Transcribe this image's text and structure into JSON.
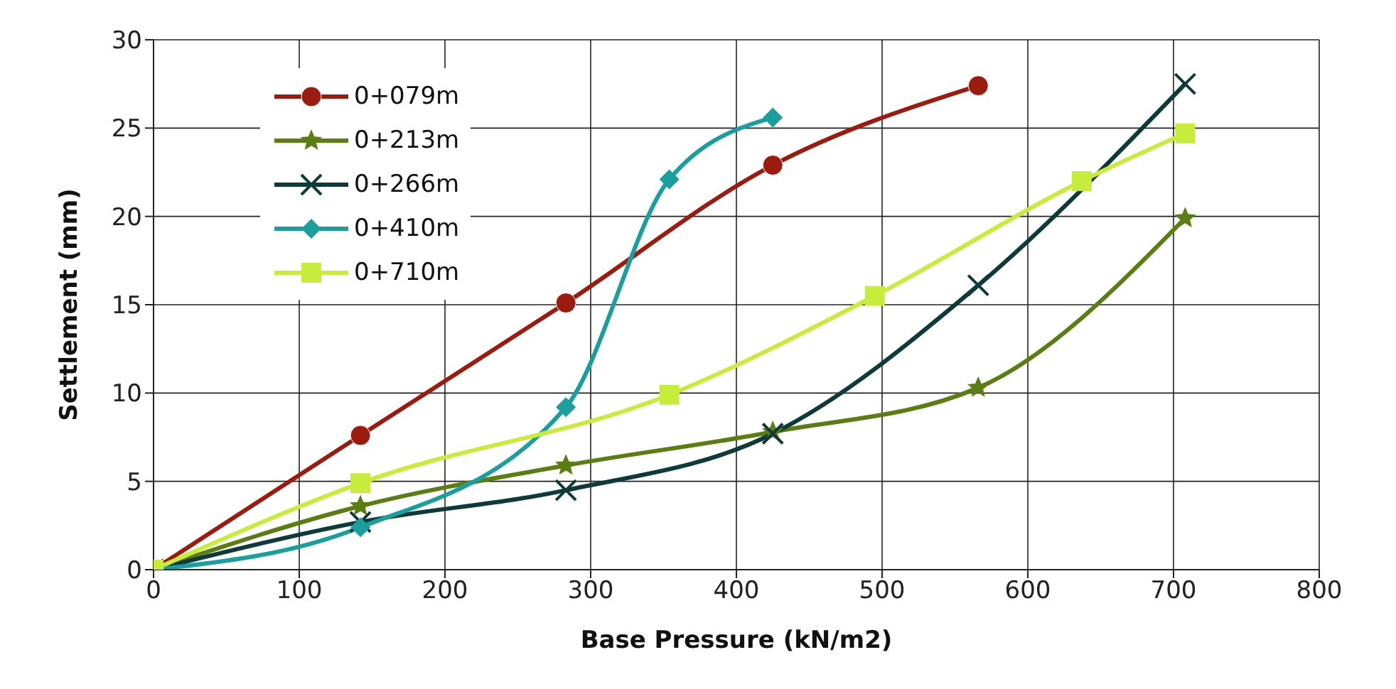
{
  "chart_data": {
    "type": "line",
    "xlabel": "Base Pressure (kN/m2)",
    "ylabel": "Settlement (mm)",
    "xlim": [
      0,
      800
    ],
    "xticks": [
      0,
      100,
      200,
      300,
      400,
      500,
      600,
      700,
      800
    ],
    "ylim": [
      0,
      30
    ],
    "yticks": [
      0,
      5,
      10,
      15,
      20,
      25,
      30
    ],
    "grid": true,
    "legend": "top left",
    "line_style": "solid",
    "series": [
      {
        "name": "0+079m",
        "color": "#9b1b0e",
        "marker": "circle",
        "x": [
          0,
          142,
          283,
          425,
          566
        ],
        "values": [
          0,
          7.6,
          15.1,
          22.9,
          27.4
        ]
      },
      {
        "name": "0+213m",
        "color": "#5b7d12",
        "marker": "star",
        "x": [
          0,
          142,
          283,
          425,
          566,
          708
        ],
        "values": [
          0,
          3.6,
          5.9,
          7.8,
          10.3,
          19.9
        ]
      },
      {
        "name": "0+266m",
        "color": "#0f3a3a",
        "marker": "cross",
        "x": [
          0,
          142,
          283,
          425,
          566,
          708
        ],
        "values": [
          0,
          2.7,
          4.5,
          7.7,
          16.1,
          27.5
        ]
      },
      {
        "name": "0+410m",
        "color": "#1a9e9e",
        "marker": "diamond",
        "x": [
          0,
          142,
          283,
          354,
          425
        ],
        "values": [
          0,
          2.4,
          9.2,
          22.1,
          25.6
        ]
      },
      {
        "name": "0+710m",
        "color": "#c8ec3c",
        "marker": "square",
        "x": [
          0,
          142,
          354,
          495,
          637,
          708
        ],
        "values": [
          0,
          4.9,
          9.9,
          15.5,
          22.0,
          24.7
        ]
      }
    ]
  }
}
